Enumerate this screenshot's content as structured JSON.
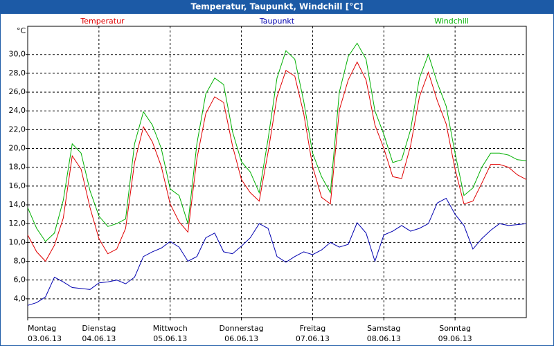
{
  "chart_data": {
    "type": "line",
    "title": "Temperatur, Taupunkt, Windchill [°C]",
    "unit_label": "°C",
    "x": [
      0,
      3,
      6,
      9,
      12,
      15,
      18,
      21,
      24,
      27,
      30,
      33,
      36,
      39,
      42,
      45,
      48,
      51,
      54,
      57,
      60,
      63,
      66,
      69,
      72,
      75,
      78,
      81,
      84,
      87,
      90,
      93,
      96,
      99,
      102,
      105,
      108,
      111,
      114,
      117,
      120,
      123,
      126,
      129,
      132,
      135,
      138,
      141,
      144,
      147,
      150,
      153,
      156,
      159,
      162,
      165,
      168
    ],
    "xlim": [
      0,
      168
    ],
    "xticks": [
      {
        "value": 0,
        "label": "Montag",
        "date": "03.06.13"
      },
      {
        "value": 24,
        "label": "Dienstag",
        "date": "04.06.13"
      },
      {
        "value": 48,
        "label": "Mittwoch",
        "date": "05.06.13"
      },
      {
        "value": 72,
        "label": "Donnerstag",
        "date": "06.06.13"
      },
      {
        "value": 96,
        "label": "Freitag",
        "date": "07.06.13"
      },
      {
        "value": 120,
        "label": "Samstag",
        "date": "08.06.13"
      },
      {
        "value": 144,
        "label": "Sonntag",
        "date": "09.06.13"
      }
    ],
    "ylim": [
      2,
      33
    ],
    "yticks": [
      {
        "value": 4,
        "label": "4,0"
      },
      {
        "value": 6,
        "label": "6,0"
      },
      {
        "value": 8,
        "label": "8,0"
      },
      {
        "value": 10,
        "label": "10,0"
      },
      {
        "value": 12,
        "label": "12,0"
      },
      {
        "value": 14,
        "label": "14,0"
      },
      {
        "value": 16,
        "label": "16,0"
      },
      {
        "value": 18,
        "label": "18,0"
      },
      {
        "value": 20,
        "label": "20,0"
      },
      {
        "value": 22,
        "label": "22,0"
      },
      {
        "value": 24,
        "label": "24,0"
      },
      {
        "value": 26,
        "label": "26,0"
      },
      {
        "value": 28,
        "label": "28,0"
      },
      {
        "value": 30,
        "label": "30,0"
      }
    ],
    "grid": true,
    "series": [
      {
        "name": "Temperatur",
        "color": "#e00000",
        "values": [
          10.8,
          9.0,
          8.0,
          9.7,
          12.6,
          19.2,
          17.8,
          13.7,
          10.4,
          8.8,
          9.3,
          11.5,
          18.5,
          22.3,
          20.7,
          18.1,
          14.1,
          12.2,
          11.1,
          18.9,
          23.7,
          25.5,
          24.9,
          20.3,
          16.7,
          15.3,
          14.4,
          19.6,
          25.5,
          28.3,
          27.7,
          23.7,
          18.1,
          14.8,
          14.1,
          24.1,
          27.3,
          29.2,
          27.3,
          22.5,
          20.0,
          17.0,
          16.8,
          20.3,
          25.5,
          28.1,
          25.1,
          22.6,
          17.8,
          14.1,
          14.4,
          16.3,
          18.3,
          18.3,
          18.0,
          17.2,
          16.7
        ]
      },
      {
        "name": "Taupunkt",
        "color": "#0000b0",
        "values": [
          3.3,
          3.6,
          4.2,
          6.3,
          5.8,
          5.2,
          5.1,
          5.0,
          5.7,
          5.8,
          6.0,
          5.6,
          6.3,
          8.5,
          9.0,
          9.4,
          10.1,
          9.5,
          8.0,
          8.5,
          10.5,
          11.0,
          9.0,
          8.8,
          9.6,
          10.5,
          12.0,
          11.5,
          8.5,
          7.9,
          8.5,
          9.0,
          8.7,
          9.2,
          10.0,
          9.5,
          9.8,
          12.1,
          11.0,
          8.0,
          10.8,
          11.2,
          11.8,
          11.2,
          11.5,
          12.0,
          14.2,
          14.7,
          13.0,
          11.8,
          9.3,
          10.4,
          11.3,
          12.0,
          11.8,
          11.9,
          12.0
        ]
      },
      {
        "name": "Windchill",
        "color": "#00b000",
        "values": [
          13.7,
          11.5,
          10.1,
          11.0,
          14.5,
          20.5,
          19.5,
          15.5,
          12.8,
          11.7,
          12.0,
          12.5,
          20.5,
          23.9,
          22.5,
          20.0,
          15.7,
          15.0,
          12.0,
          20.5,
          25.8,
          27.5,
          26.8,
          21.8,
          18.6,
          17.5,
          15.3,
          21.0,
          27.5,
          30.4,
          29.5,
          25.0,
          19.5,
          17.0,
          15.3,
          26.0,
          29.8,
          31.2,
          29.5,
          24.0,
          21.5,
          18.5,
          18.8,
          22.0,
          27.5,
          30.0,
          27.0,
          24.5,
          19.5,
          15.0,
          15.8,
          18.0,
          19.5,
          19.5,
          19.3,
          18.8,
          18.7
        ]
      }
    ]
  }
}
